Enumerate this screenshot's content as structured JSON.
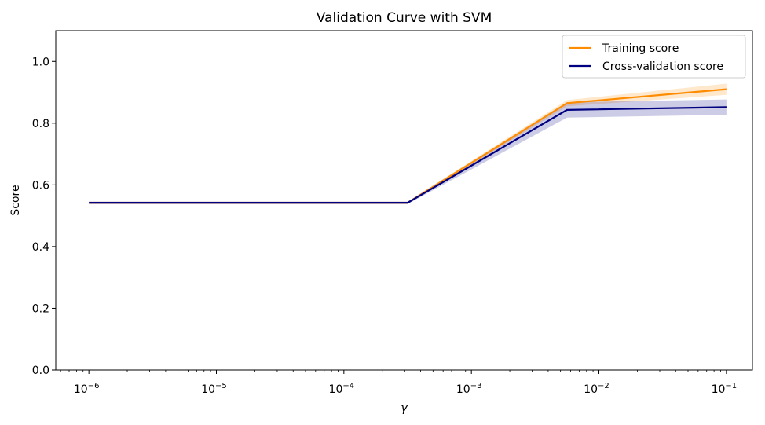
{
  "chart_data": {
    "type": "line",
    "title": "Validation Curve with SVM",
    "xlabel": "γ",
    "ylabel": "Score",
    "xscale": "log",
    "xlim": [
      5.5e-07,
      0.16
    ],
    "ylim": [
      0.0,
      1.1
    ],
    "grid": false,
    "legend_position": "top-right",
    "x_ticks": [
      {
        "value": 1e-06,
        "base": "10",
        "exp": "−6"
      },
      {
        "value": 1e-05,
        "base": "10",
        "exp": "−5"
      },
      {
        "value": 0.0001,
        "base": "10",
        "exp": "−4"
      },
      {
        "value": 0.001,
        "base": "10",
        "exp": "−3"
      },
      {
        "value": 0.01,
        "base": "10",
        "exp": "−2"
      },
      {
        "value": 0.1,
        "base": "10",
        "exp": "−1"
      }
    ],
    "y_ticks": [
      "0.0",
      "0.2",
      "0.4",
      "0.6",
      "0.8",
      "1.0"
    ],
    "x": [
      1e-06,
      1.78e-05,
      0.000316,
      0.00562,
      0.1
    ],
    "series": [
      {
        "name": "Training score",
        "color": "#ff8c00",
        "values": [
          0.542,
          0.542,
          0.542,
          0.865,
          0.91
        ],
        "band": [
          0.004,
          0.004,
          0.004,
          0.01,
          0.018
        ]
      },
      {
        "name": "Cross-validation score",
        "color": "#000080",
        "values": [
          0.542,
          0.542,
          0.542,
          0.843,
          0.852
        ],
        "band": [
          0.004,
          0.004,
          0.004,
          0.025,
          0.025
        ]
      }
    ]
  }
}
